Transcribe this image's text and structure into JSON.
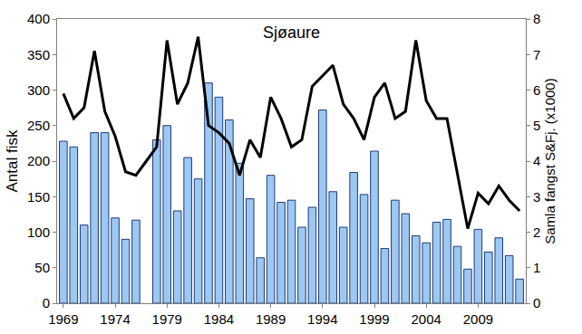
{
  "chart_data": {
    "type": "bar",
    "title": "Sjøaure",
    "y_label": "Antal fisk",
    "y2_label": "Samla fangst S&Fj. (x1000)",
    "x": [
      1969,
      1970,
      1971,
      1972,
      1973,
      1974,
      1975,
      1976,
      1977,
      1978,
      1979,
      1980,
      1981,
      1982,
      1983,
      1984,
      1985,
      1986,
      1987,
      1988,
      1989,
      1990,
      1991,
      1992,
      1993,
      1994,
      1995,
      1996,
      1997,
      1998,
      1999,
      2000,
      2001,
      2002,
      2003,
      2004,
      2005,
      2006,
      2007,
      2008,
      2009,
      2010,
      2011,
      2012,
      2013
    ],
    "series": [
      {
        "type": "bar",
        "color": "#9cc8f2",
        "values": [
          228,
          220,
          110,
          240,
          240,
          120,
          90,
          117,
          null,
          230,
          250,
          130,
          205,
          175,
          310,
          290,
          258,
          197,
          147,
          64,
          180,
          142,
          145,
          107,
          135,
          272,
          157,
          107,
          184,
          153,
          214,
          77,
          145,
          126,
          95,
          85,
          114,
          118,
          80,
          48,
          104,
          72,
          92,
          67,
          34
        ]
      },
      {
        "type": "line",
        "color": "#000000",
        "axis": "y2",
        "values": [
          5.9,
          5.2,
          5.5,
          7.1,
          5.4,
          4.7,
          3.7,
          3.6,
          4.0,
          4.4,
          7.4,
          5.6,
          6.2,
          7.5,
          5.0,
          4.8,
          4.5,
          3.6,
          4.6,
          4.1,
          5.8,
          5.2,
          4.4,
          4.6,
          6.1,
          6.4,
          6.7,
          5.6,
          5.2,
          4.6,
          5.8,
          6.2,
          5.2,
          5.4,
          7.4,
          5.7,
          5.2,
          5.2,
          3.7,
          2.1,
          3.1,
          2.8,
          3.3,
          2.9,
          2.6
        ]
      }
    ],
    "xlim": [
      1968.4,
      2013.6
    ],
    "xticks": [
      1969,
      1974,
      1979,
      1984,
      1989,
      1994,
      1999,
      2004,
      2009
    ],
    "ylim": [
      0,
      400
    ],
    "yticks": [
      0,
      50,
      100,
      150,
      200,
      250,
      300,
      350,
      400
    ],
    "y2lim": [
      0,
      8
    ],
    "y2ticks": [
      0,
      1,
      2,
      3,
      4,
      5,
      6,
      7,
      8
    ],
    "grid": false
  }
}
